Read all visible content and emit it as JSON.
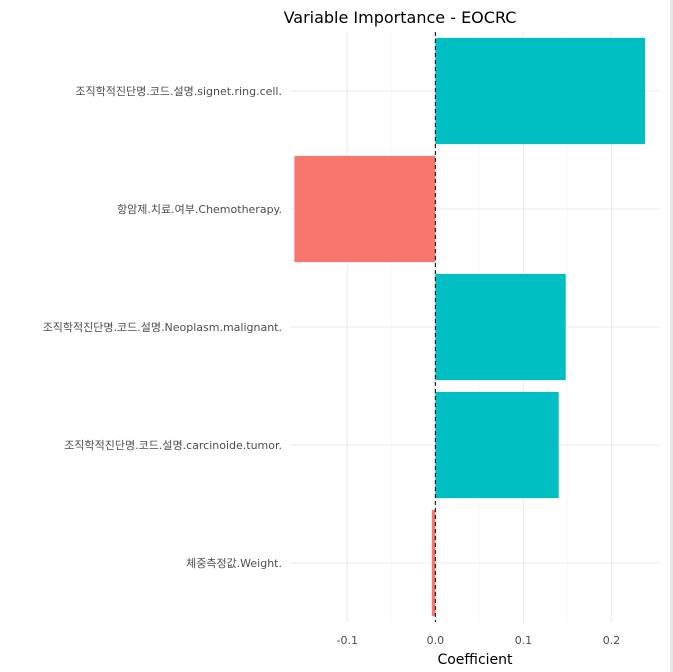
{
  "chart_data": {
    "type": "bar",
    "orientation": "horizontal",
    "title": "Variable Importance - EOCRC",
    "xlabel": "Coefficient",
    "ylabel": "",
    "xlim": [
      -0.165,
      0.255
    ],
    "x_ticks": [
      -0.1,
      0.0,
      0.1,
      0.2
    ],
    "x_tick_labels": [
      "-0.1",
      "0.0",
      "0.1",
      "0.2"
    ],
    "categories": [
      "조직학적진단명.코드.설명.signet.ring.cell.",
      "항암제.치료.여부.Chemotherapy.",
      "조직학적진단명.코드.설명.Neoplasm.malignant.",
      "조직학적진단명.코드.설명.carcinoide.tumor.",
      "체중측정값.Weight."
    ],
    "values": [
      0.238,
      -0.16,
      0.148,
      0.14,
      -0.004
    ],
    "colors": {
      "positive": "#00BFC4",
      "negative": "#F8766D"
    },
    "reference_line": {
      "x": 0,
      "style": "dashed"
    },
    "grid": true,
    "legend": "none"
  }
}
